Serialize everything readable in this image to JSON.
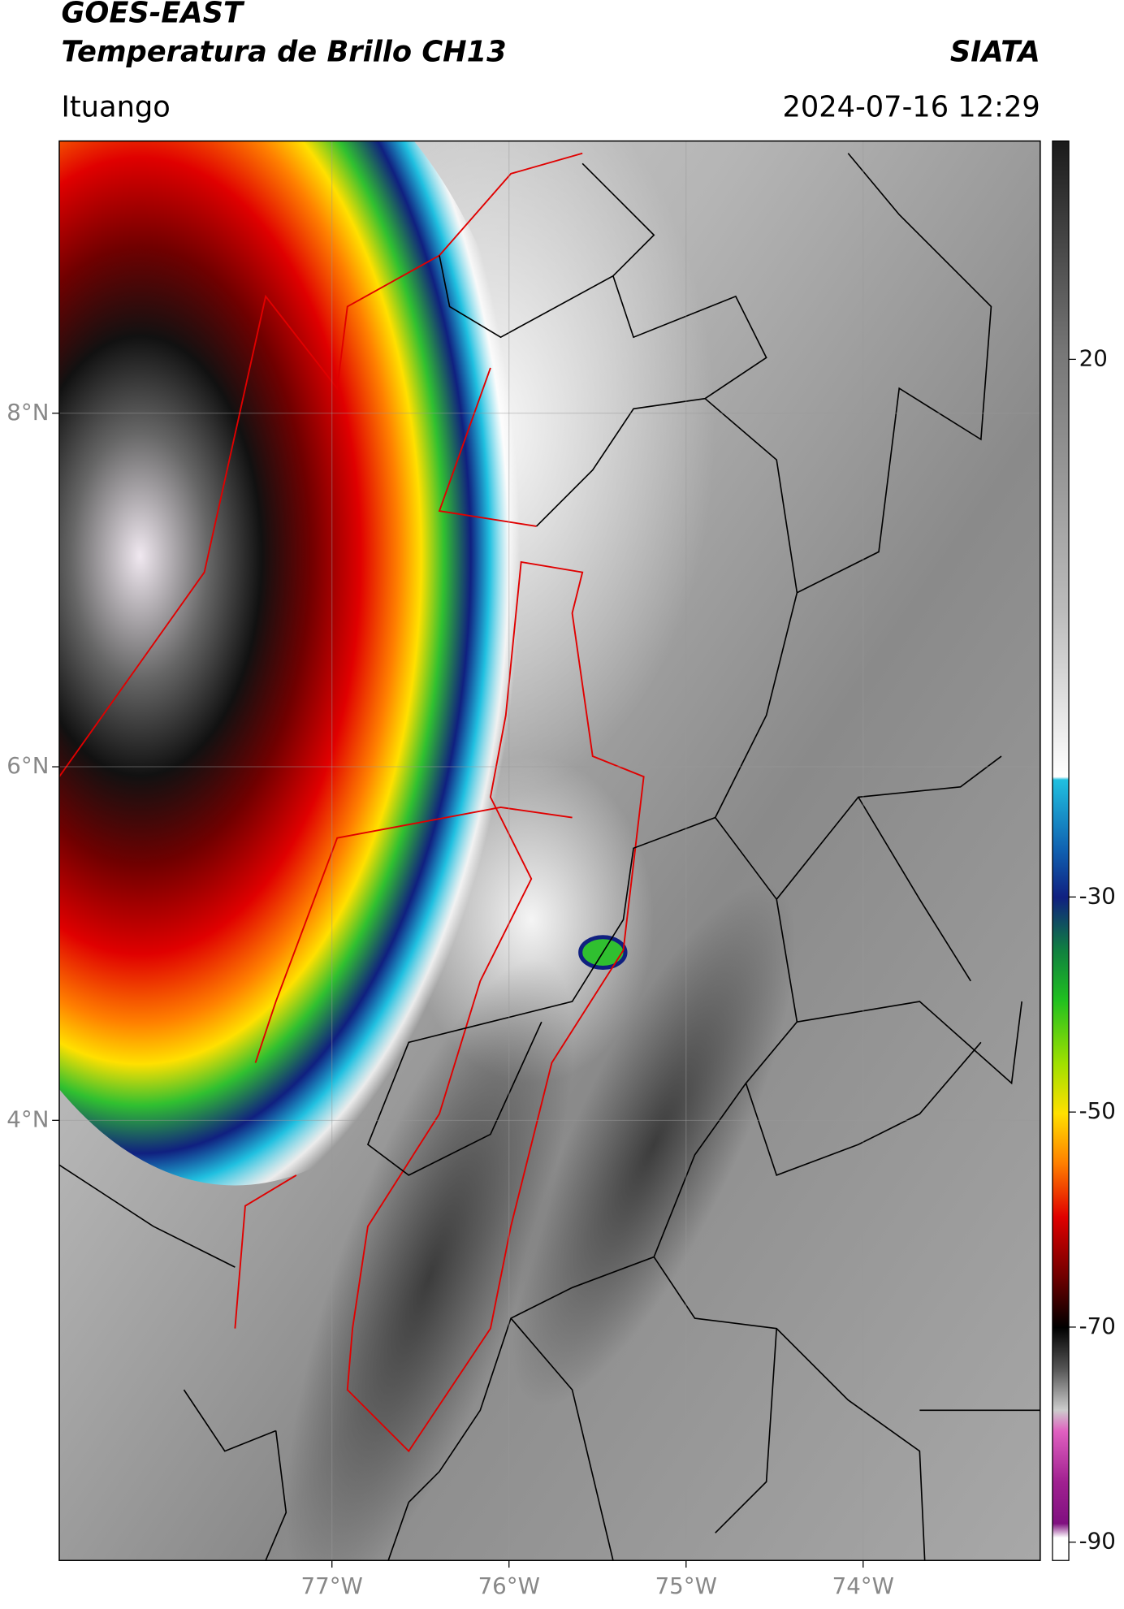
{
  "header": {
    "title": "GOES-EAST",
    "subtitle": "Temperatura de Brillo CH13",
    "agency": "SIATA",
    "location": "Ituango",
    "timestamp": "2024-07-16 12:29"
  },
  "map": {
    "xlim": [
      -78.54,
      -73.0
    ],
    "ylim": [
      1.51,
      9.54
    ],
    "xticks": [
      {
        "value": -77,
        "label": "77°W"
      },
      {
        "value": -76,
        "label": "76°W"
      },
      {
        "value": -75,
        "label": "75°W"
      },
      {
        "value": -74,
        "label": "74°W"
      }
    ],
    "yticks": [
      {
        "value": 8,
        "label": "8°N"
      },
      {
        "value": 6,
        "label": "6°N"
      },
      {
        "value": 4,
        "label": "4°N"
      }
    ],
    "grid": true
  },
  "colorbar": {
    "lim": [
      -91.7,
      40.3
    ],
    "ticks": [
      20,
      -30,
      -50,
      -70,
      -90
    ]
  }
}
